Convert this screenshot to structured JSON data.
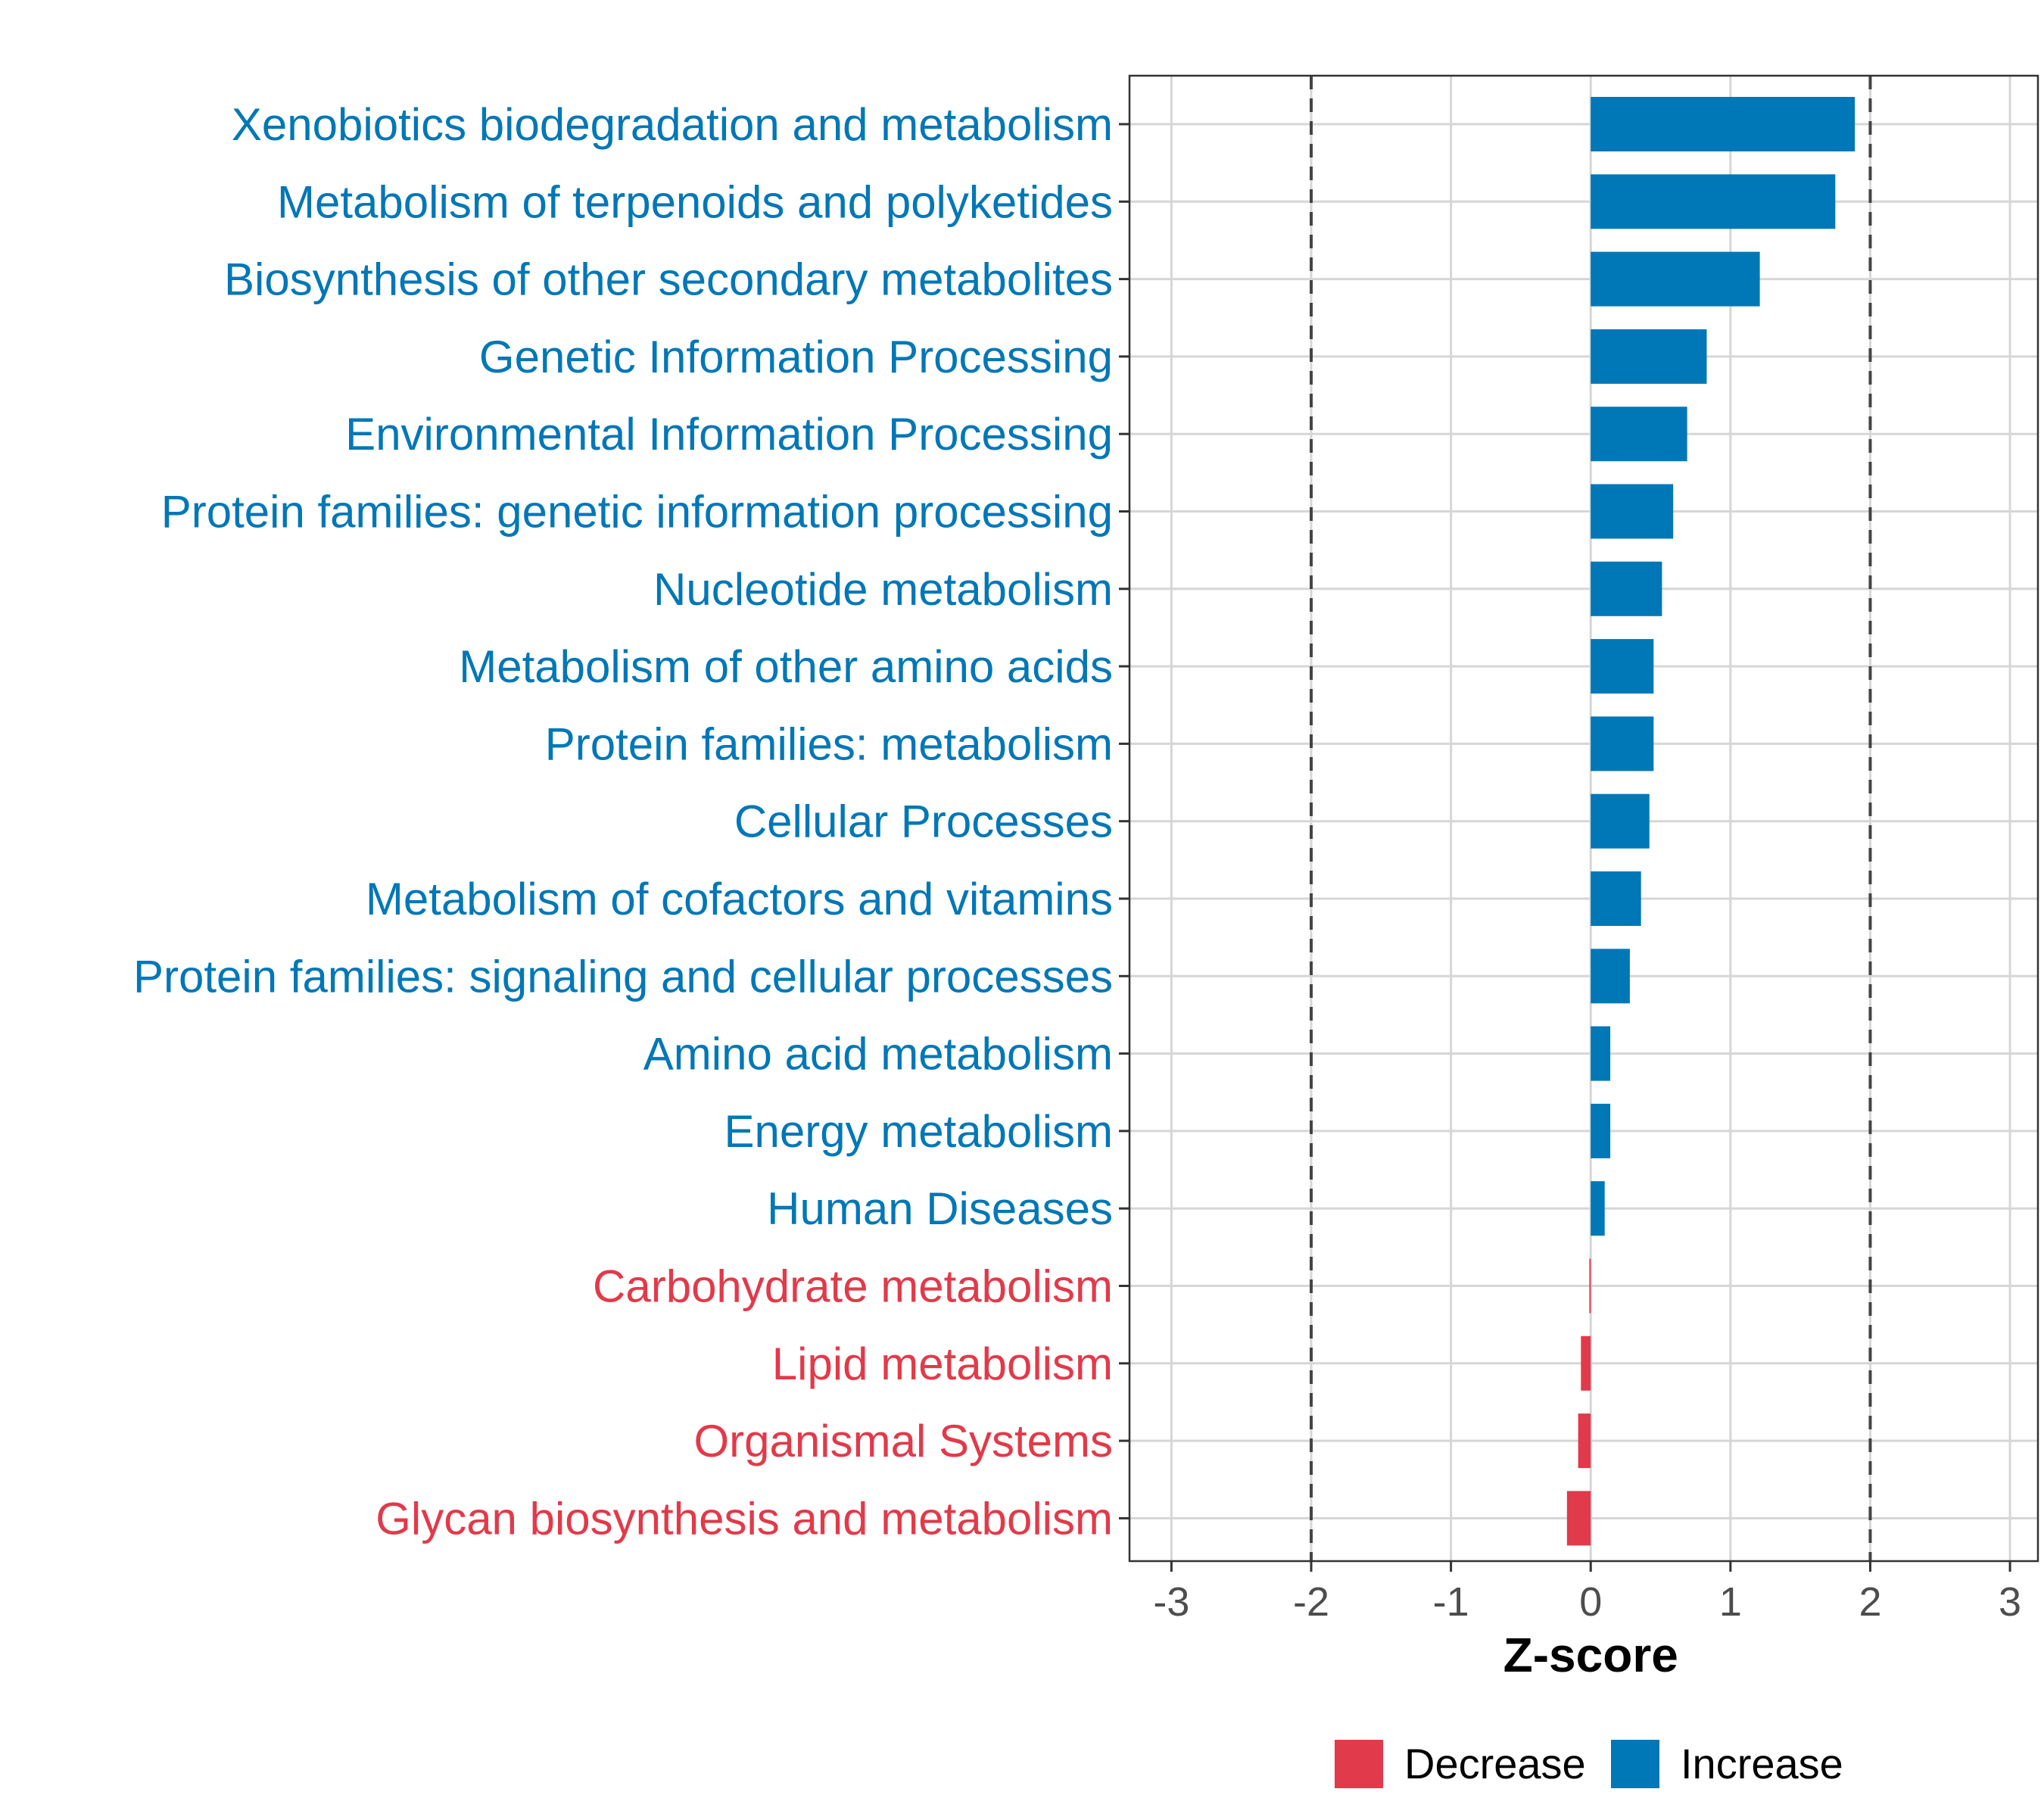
{
  "chart_data": {
    "type": "bar",
    "orientation": "horizontal",
    "title": "",
    "xlabel": "Z-score",
    "ylabel": "",
    "xlim": [
      -3.3,
      3.2
    ],
    "x_ticks": [
      -3,
      -2,
      -1,
      0,
      1,
      2,
      3
    ],
    "x_tick_labels": [
      "-3",
      "-2",
      "-1",
      "0",
      "1",
      "2",
      "3"
    ],
    "reference_lines": [
      -2,
      2
    ],
    "grid": true,
    "legend_position": "bottom",
    "colors": {
      "Decrease": "#e13a4a",
      "Increase": "#0077b6"
    },
    "legend": [
      {
        "label": "Decrease",
        "color": "#e13a4a"
      },
      {
        "label": "Increase",
        "color": "#0077b6"
      }
    ],
    "categories": [
      "Xenobiotics biodegradation and metabolism",
      "Metabolism of terpenoids and polyketides",
      "Biosynthesis of other secondary metabolites",
      "Genetic Information Processing",
      "Environmental Information Processing",
      "Protein families: genetic information processing",
      "Nucleotide metabolism",
      "Metabolism of other amino acids",
      "Protein families: metabolism",
      "Cellular Processes",
      "Metabolism of cofactors and vitamins",
      "Protein families: signaling and cellular processes",
      "Amino acid metabolism",
      "Energy metabolism",
      "Human Diseases",
      "Carbohydrate metabolism",
      "Lipid metabolism",
      "Organismal Systems",
      "Glycan biosynthesis and metabolism"
    ],
    "values": [
      1.89,
      1.75,
      1.21,
      0.83,
      0.69,
      0.59,
      0.51,
      0.45,
      0.45,
      0.42,
      0.36,
      0.28,
      0.14,
      0.14,
      0.1,
      -0.01,
      -0.07,
      -0.09,
      -0.17
    ],
    "groups": [
      "Increase",
      "Increase",
      "Increase",
      "Increase",
      "Increase",
      "Increase",
      "Increase",
      "Increase",
      "Increase",
      "Increase",
      "Increase",
      "Increase",
      "Increase",
      "Increase",
      "Increase",
      "Decrease",
      "Decrease",
      "Decrease",
      "Decrease"
    ]
  }
}
